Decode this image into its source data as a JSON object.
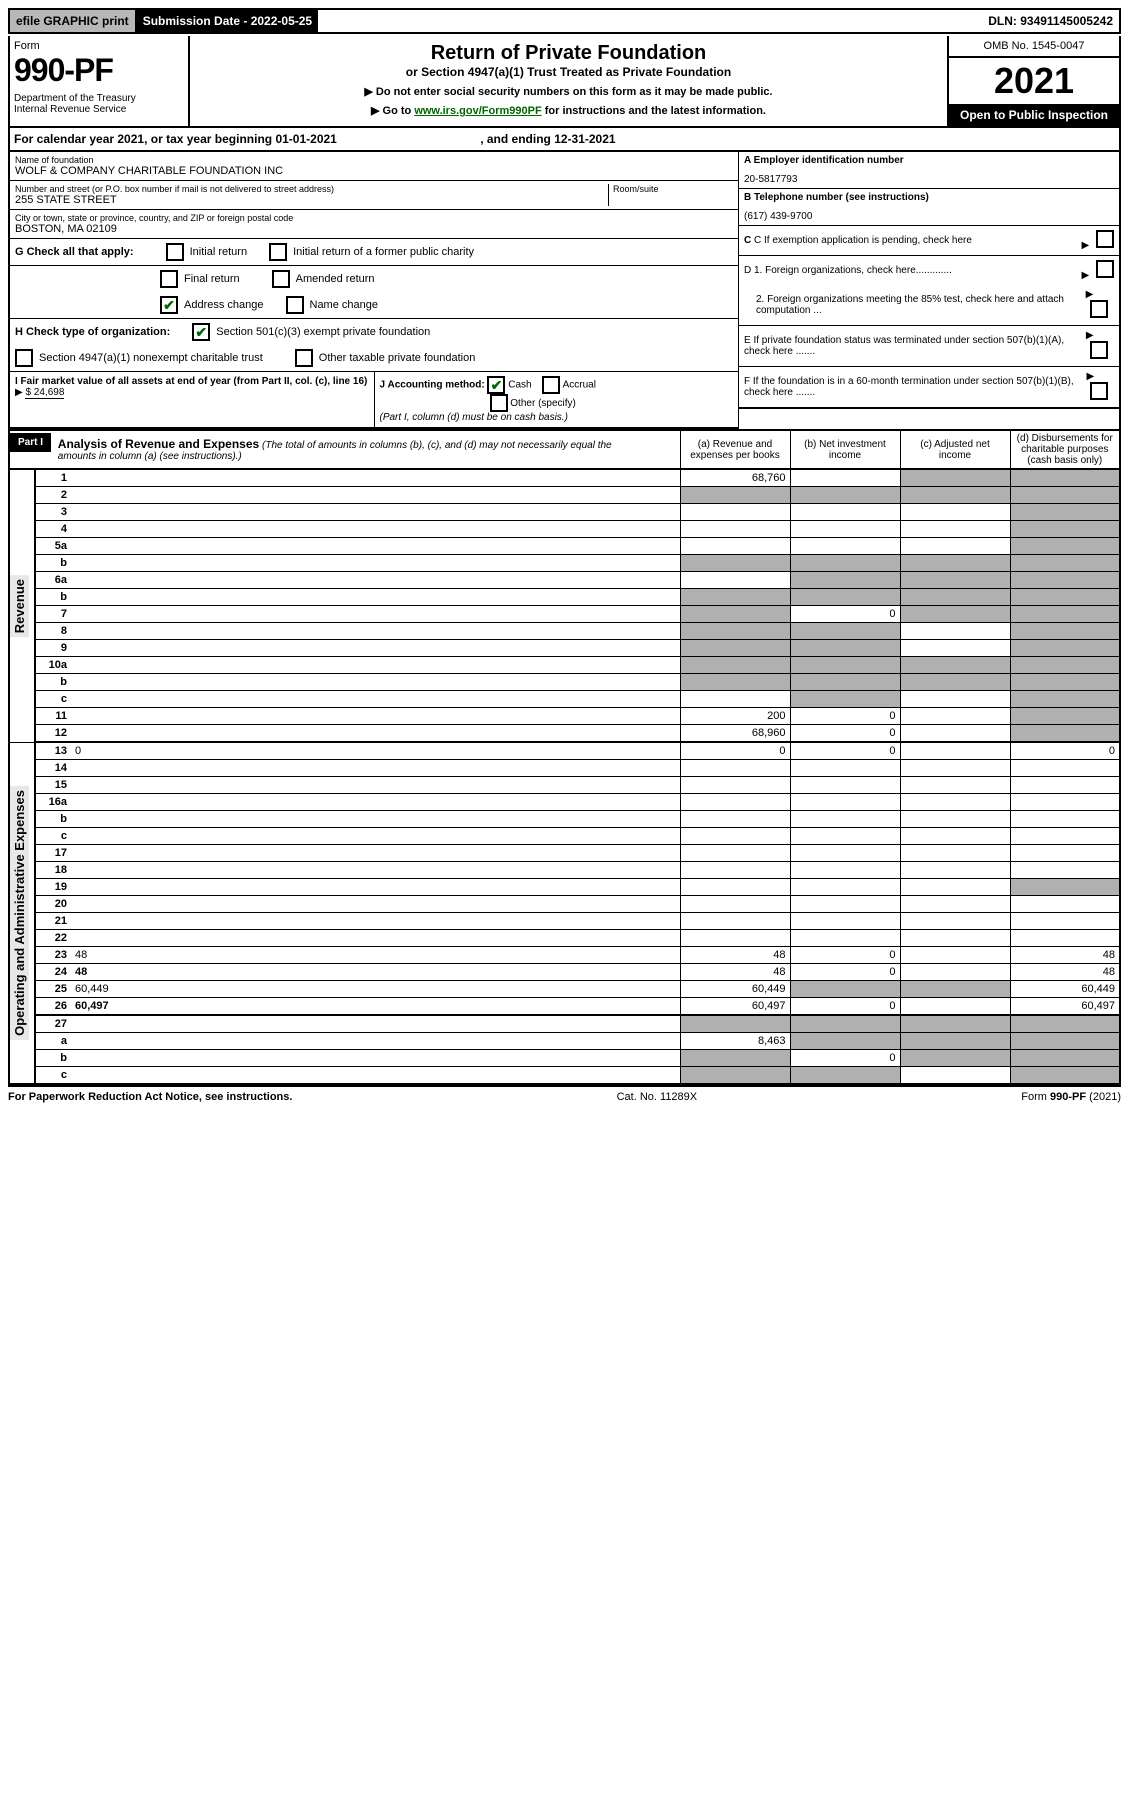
{
  "top": {
    "efile": "efile GRAPHIC print",
    "sub_label": "Submission Date - 2022-05-25",
    "dln": "DLN: 93491145005242"
  },
  "header": {
    "form": "Form",
    "form_number": "990-PF",
    "dept": "Department of the Treasury\nInternal Revenue Service",
    "title": "Return of Private Foundation",
    "subtitle": "or Section 4947(a)(1) Trust Treated as Private Foundation",
    "instr1": "▶ Do not enter social security numbers on this form as it may be made public.",
    "instr2_pre": "▶ Go to ",
    "instr2_link": "www.irs.gov/Form990PF",
    "instr2_post": " for instructions and the latest information.",
    "omb": "OMB No. 1545-0047",
    "year": "2021",
    "open": "Open to Public Inspection"
  },
  "calendar": {
    "text_pre": "For calendar year 2021, or tax year beginning ",
    "begin": "01-01-2021",
    "mid": " , and ending ",
    "end": "12-31-2021"
  },
  "entity": {
    "name_label": "Name of foundation",
    "name": "WOLF & COMPANY CHARITABLE FOUNDATION INC",
    "addr_label": "Number and street (or P.O. box number if mail is not delivered to street address)",
    "addr": "255 STATE STREET",
    "room_label": "Room/suite",
    "city_label": "City or town, state or province, country, and ZIP or foreign postal code",
    "city": "BOSTON, MA  02109",
    "ein_label": "A Employer identification number",
    "ein": "20-5817793",
    "phone_label": "B Telephone number (see instructions)",
    "phone": "(617) 439-9700",
    "c_label": "C If exemption application is pending, check here",
    "d1": "D 1. Foreign organizations, check here.............",
    "d2": "2. Foreign organizations meeting the 85% test, check here and attach computation ...",
    "e": "E  If private foundation status was terminated under section 507(b)(1)(A), check here .......",
    "f": "F  If the foundation is in a 60-month termination under section 507(b)(1)(B), check here .......",
    "g_label": "G Check all that apply:",
    "g_initial": "Initial return",
    "g_initial_former": "Initial return of a former public charity",
    "g_final": "Final return",
    "g_amended": "Amended return",
    "g_address": "Address change",
    "g_name": "Name change",
    "h_label": "H Check type of organization:",
    "h_501c3": "Section 501(c)(3) exempt private foundation",
    "h_4947": "Section 4947(a)(1) nonexempt charitable trust",
    "h_other": "Other taxable private foundation",
    "i_label": "I Fair market value of all assets at end of year (from Part II, col. (c), line 16)",
    "i_value": "$  24,698",
    "j_label": "J Accounting method:",
    "j_cash": "Cash",
    "j_accrual": "Accrual",
    "j_other": "Other (specify)",
    "j_note": "(Part I, column (d) must be on cash basis.)"
  },
  "part1": {
    "label": "Part I",
    "title": "Analysis of Revenue and Expenses",
    "title_note": "(The total of amounts in columns (b), (c), and (d) may not necessarily equal the amounts in column (a) (see instructions).)",
    "col_a": "(a)   Revenue and expenses per books",
    "col_b": "(b)   Net investment income",
    "col_c": "(c)   Adjusted net income",
    "col_d": "(d)   Disbursements for charitable purposes (cash basis only)"
  },
  "sections": {
    "revenue": "Revenue",
    "expenses": "Operating and Administrative Expenses"
  },
  "rows": [
    {
      "n": "1",
      "d": "",
      "a": "68,760",
      "b": "",
      "c": "",
      "sh": [
        "c",
        "d"
      ]
    },
    {
      "n": "2",
      "d": "",
      "a": "",
      "b": "",
      "c": "",
      "sh": [
        "a",
        "b",
        "c",
        "d"
      ]
    },
    {
      "n": "3",
      "d": "",
      "a": "",
      "b": "",
      "c": "",
      "sh": [
        "d"
      ]
    },
    {
      "n": "4",
      "d": "",
      "a": "",
      "b": "",
      "c": "",
      "sh": [
        "d"
      ]
    },
    {
      "n": "5a",
      "d": "",
      "a": "",
      "b": "",
      "c": "",
      "sh": [
        "d"
      ]
    },
    {
      "n": "b",
      "d": "",
      "a": "",
      "b": "",
      "c": "",
      "sh": [
        "a",
        "b",
        "c",
        "d"
      ]
    },
    {
      "n": "6a",
      "d": "",
      "a": "",
      "b": "",
      "c": "",
      "sh": [
        "b",
        "c",
        "d"
      ]
    },
    {
      "n": "b",
      "d": "",
      "a": "",
      "b": "",
      "c": "",
      "sh": [
        "a",
        "b",
        "c",
        "d"
      ]
    },
    {
      "n": "7",
      "d": "",
      "a": "",
      "b": "0",
      "c": "",
      "sh": [
        "a",
        "c",
        "d"
      ]
    },
    {
      "n": "8",
      "d": "",
      "a": "",
      "b": "",
      "c": "",
      "sh": [
        "a",
        "b",
        "d"
      ]
    },
    {
      "n": "9",
      "d": "",
      "a": "",
      "b": "",
      "c": "",
      "sh": [
        "a",
        "b",
        "d"
      ]
    },
    {
      "n": "10a",
      "d": "",
      "a": "",
      "b": "",
      "c": "",
      "sh": [
        "a",
        "b",
        "c",
        "d"
      ]
    },
    {
      "n": "b",
      "d": "",
      "a": "",
      "b": "",
      "c": "",
      "sh": [
        "a",
        "b",
        "c",
        "d"
      ]
    },
    {
      "n": "c",
      "d": "",
      "a": "",
      "b": "",
      "c": "",
      "sh": [
        "b",
        "d"
      ]
    },
    {
      "n": "11",
      "d": "",
      "a": "200",
      "b": "0",
      "c": "",
      "sh": [
        "d"
      ]
    },
    {
      "n": "12",
      "d": "",
      "a": "68,960",
      "b": "0",
      "c": "",
      "sh": [
        "d"
      ],
      "bold": true
    }
  ],
  "rows_exp": [
    {
      "n": "13",
      "d": "0",
      "a": "0",
      "b": "0",
      "c": ""
    },
    {
      "n": "14",
      "d": "",
      "a": "",
      "b": "",
      "c": ""
    },
    {
      "n": "15",
      "d": "",
      "a": "",
      "b": "",
      "c": ""
    },
    {
      "n": "16a",
      "d": "",
      "a": "",
      "b": "",
      "c": ""
    },
    {
      "n": "b",
      "d": "",
      "a": "",
      "b": "",
      "c": ""
    },
    {
      "n": "c",
      "d": "",
      "a": "",
      "b": "",
      "c": ""
    },
    {
      "n": "17",
      "d": "",
      "a": "",
      "b": "",
      "c": ""
    },
    {
      "n": "18",
      "d": "",
      "a": "",
      "b": "",
      "c": ""
    },
    {
      "n": "19",
      "d": "",
      "a": "",
      "b": "",
      "c": "",
      "sh": [
        "d"
      ]
    },
    {
      "n": "20",
      "d": "",
      "a": "",
      "b": "",
      "c": ""
    },
    {
      "n": "21",
      "d": "",
      "a": "",
      "b": "",
      "c": ""
    },
    {
      "n": "22",
      "d": "",
      "a": "",
      "b": "",
      "c": ""
    },
    {
      "n": "23",
      "d": "48",
      "a": "48",
      "b": "0",
      "c": ""
    },
    {
      "n": "24",
      "d": "48",
      "a": "48",
      "b": "0",
      "c": "",
      "bold": true
    },
    {
      "n": "25",
      "d": "60,449",
      "a": "60,449",
      "b": "",
      "c": "",
      "sh": [
        "b",
        "c"
      ]
    },
    {
      "n": "26",
      "d": "60,497",
      "a": "60,497",
      "b": "0",
      "c": "",
      "bold": true
    },
    {
      "n": "27",
      "d": "",
      "a": "",
      "b": "",
      "c": "",
      "sh": [
        "a",
        "b",
        "c",
        "d"
      ]
    },
    {
      "n": "a",
      "d": "",
      "a": "8,463",
      "b": "",
      "c": "",
      "sh": [
        "b",
        "c",
        "d"
      ],
      "bold": true
    },
    {
      "n": "b",
      "d": "",
      "a": "",
      "b": "0",
      "c": "",
      "sh": [
        "a",
        "c",
        "d"
      ],
      "bold": true
    },
    {
      "n": "c",
      "d": "",
      "a": "",
      "b": "",
      "c": "",
      "sh": [
        "a",
        "b",
        "d"
      ],
      "bold": true
    }
  ],
  "footer": {
    "left": "For Paperwork Reduction Act Notice, see instructions.",
    "mid": "Cat. No. 11289X",
    "right": "Form 990-PF (2021)"
  }
}
